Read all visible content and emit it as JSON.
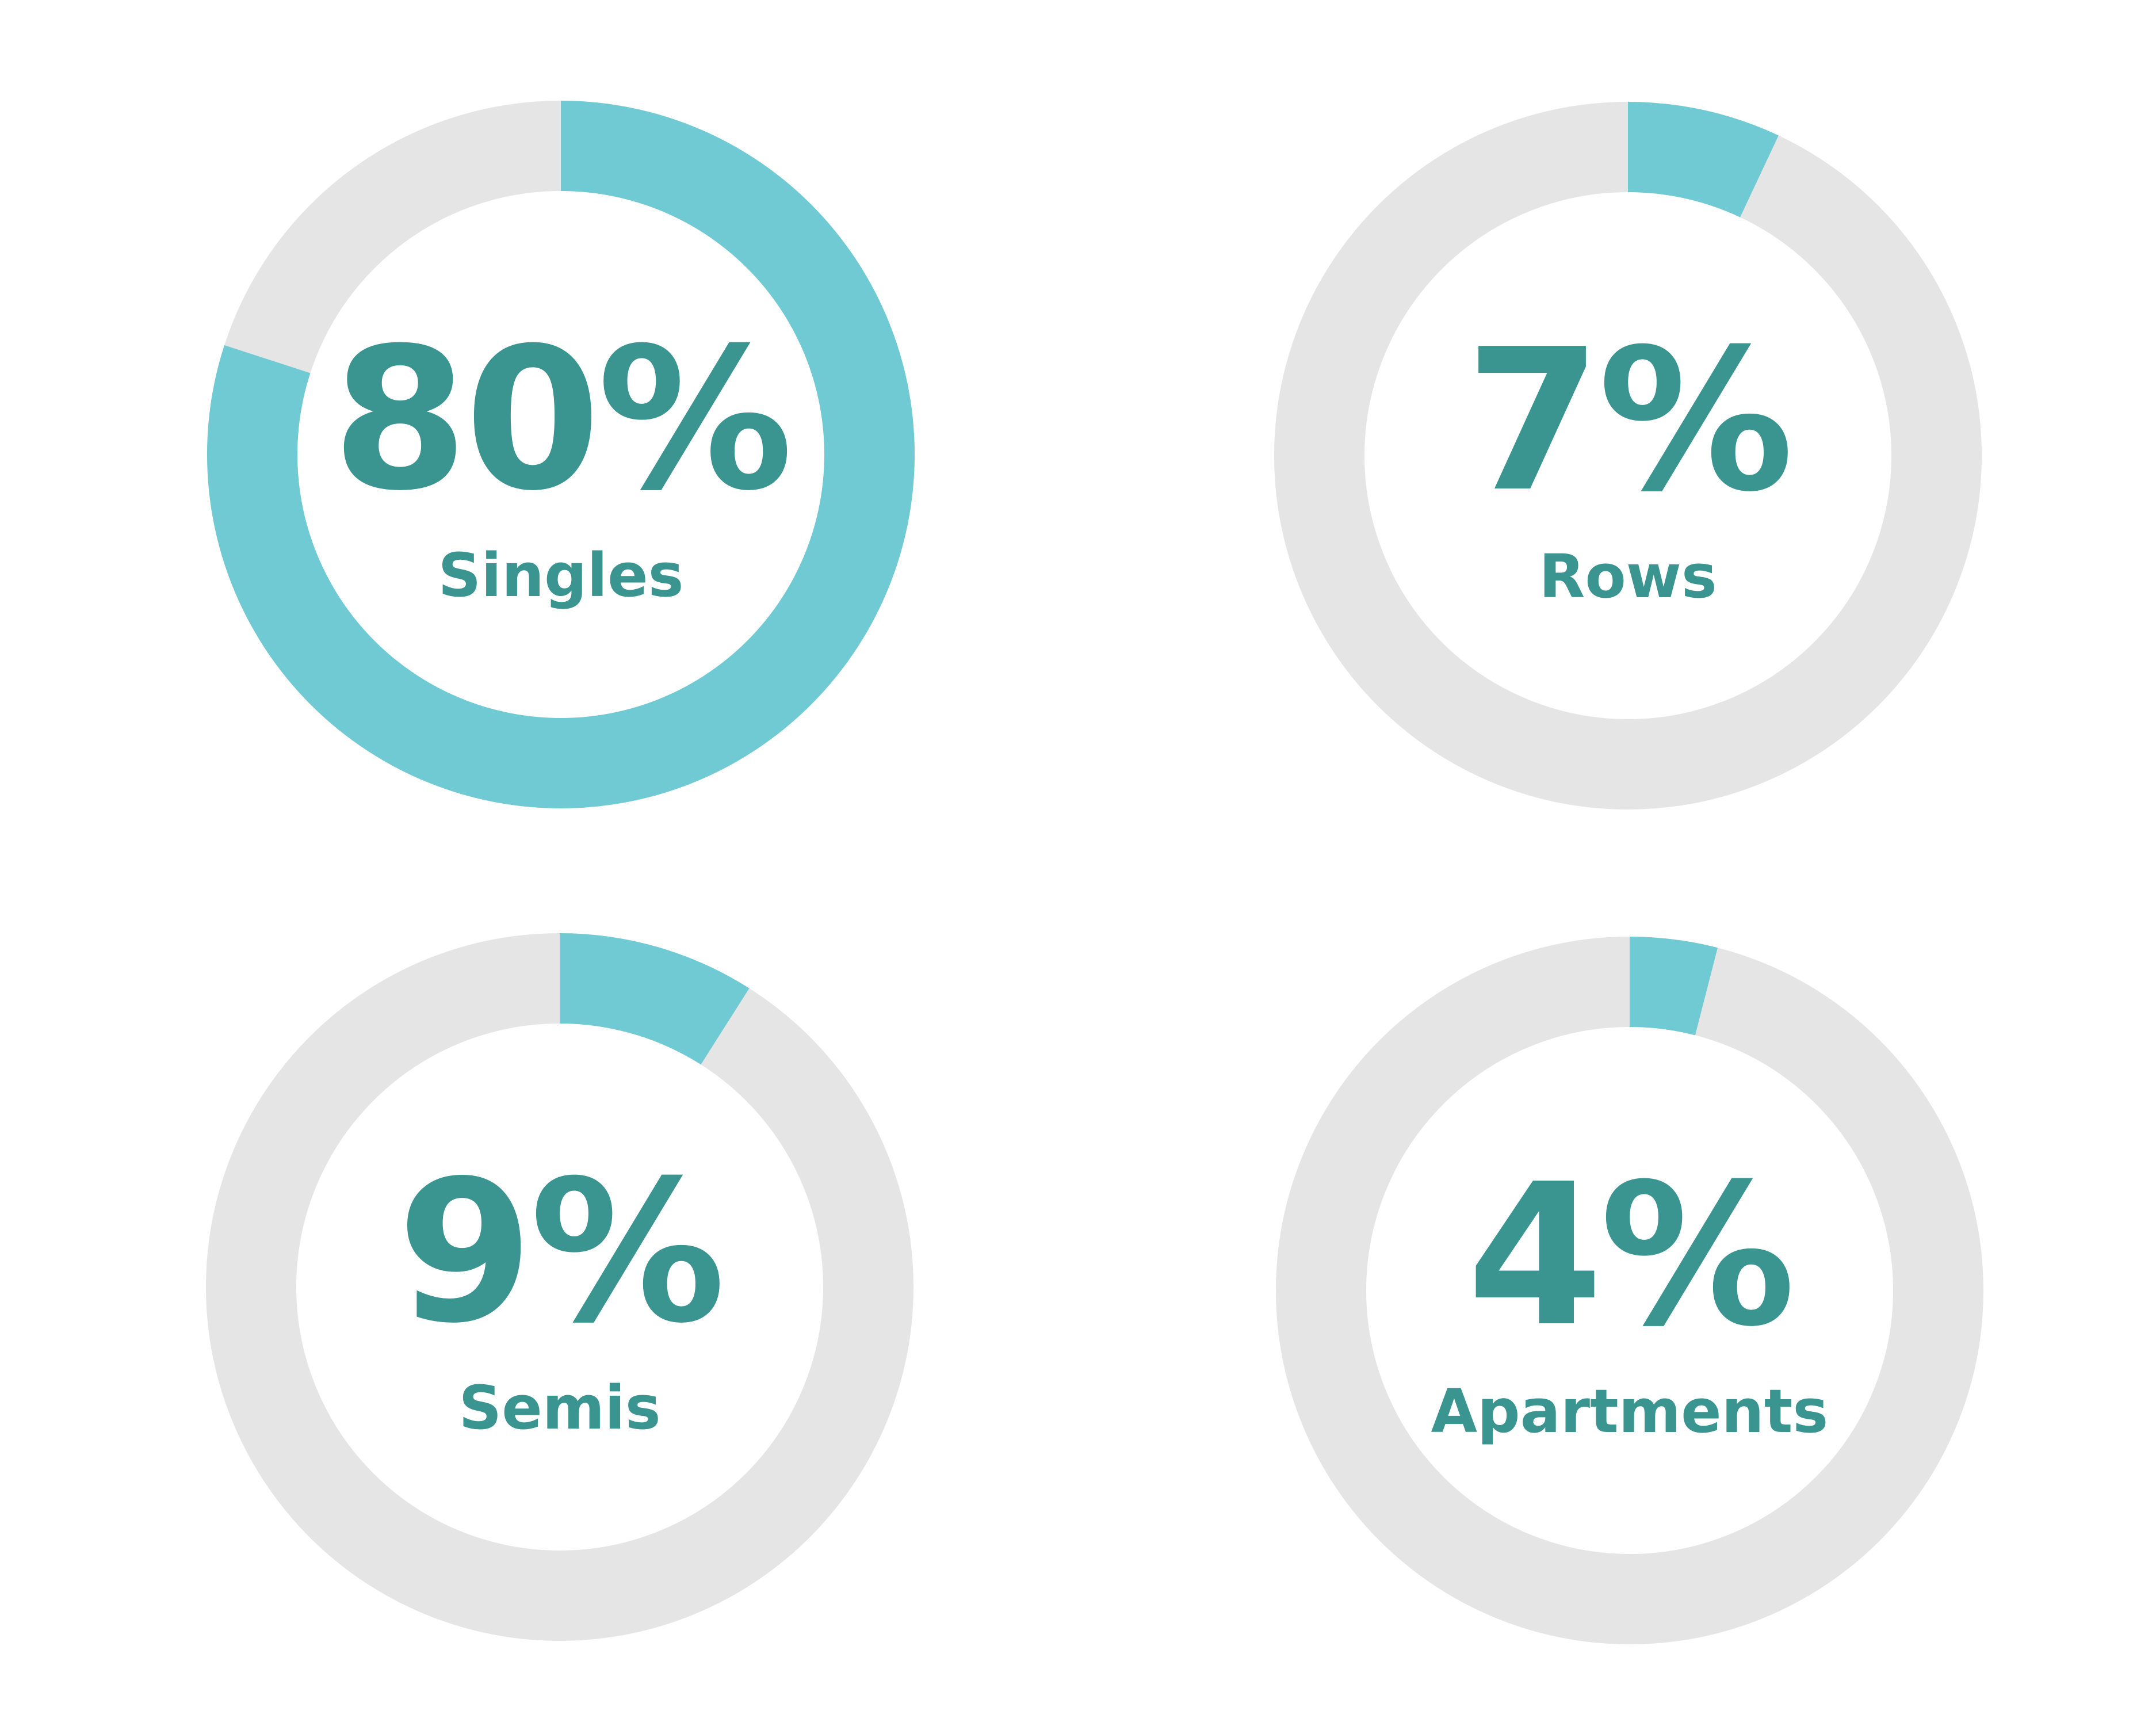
{
  "colors": {
    "filled": "#6fcad3",
    "track": "#e5e5e5",
    "text": "#3a9590",
    "background": "#ffffff"
  },
  "chart_data": [
    {
      "type": "pie",
      "style": "donut",
      "label": "Singles",
      "value_text": "80%",
      "value": 80
    },
    {
      "type": "pie",
      "style": "donut",
      "label": "Rows",
      "value_text": "7%",
      "value": 7
    },
    {
      "type": "pie",
      "style": "donut",
      "label": "Semis",
      "value_text": "9%",
      "value": 9
    },
    {
      "type": "pie",
      "style": "donut",
      "label": "Apartments",
      "value_text": "4%",
      "value": 4
    }
  ]
}
